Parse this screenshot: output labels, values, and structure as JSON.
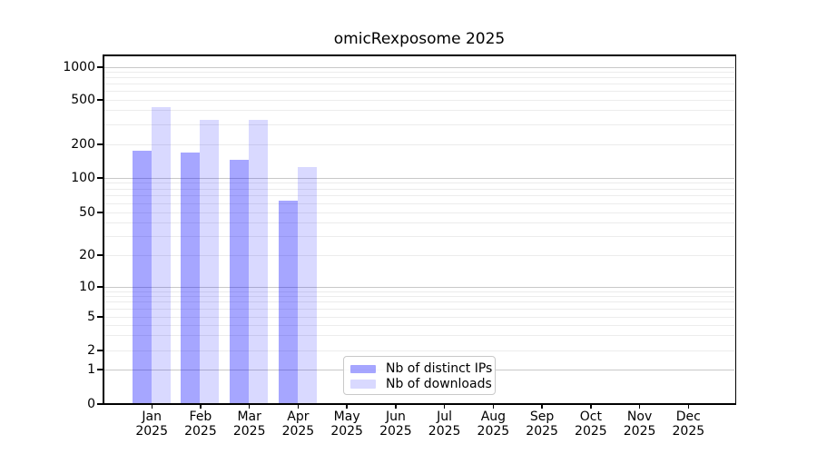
{
  "chart_data": {
    "type": "bar",
    "title": "omicRexposome 2025",
    "categories": [
      "Jan",
      "Feb",
      "Mar",
      "Apr",
      "May",
      "Jun",
      "Jul",
      "Aug",
      "Sep",
      "Oct",
      "Nov",
      "Dec"
    ],
    "category_year_label": "2025",
    "series": [
      {
        "name": "Nb of distinct IPs",
        "color": "rgba(0,0,255,0.35)",
        "values": [
          174,
          170,
          146,
          63,
          0,
          0,
          0,
          0,
          0,
          0,
          0,
          0
        ]
      },
      {
        "name": "Nb of downloads",
        "color": "rgba(0,0,255,0.15)",
        "values": [
          428,
          330,
          333,
          125,
          0,
          0,
          0,
          0,
          0,
          0,
          0,
          0
        ]
      }
    ],
    "yticks": [
      0,
      1,
      2,
      5,
      10,
      20,
      50,
      100,
      200,
      500,
      1000
    ],
    "yscale": "log (with 0 at baseline)",
    "ylim": [
      0,
      1300
    ],
    "xlabel": "",
    "ylabel": "",
    "grid": "horizontal major and minor gridlines",
    "legend_position": "inside plot, lower center"
  },
  "colors": {
    "background": "#ffffff",
    "axis": "#000000",
    "major_gridline": "#c8c8c8",
    "minor_gridline": "#ececec",
    "legend_border": "#c9c9c9",
    "bar_distinct_ips": "rgba(0,0,255,0.35)",
    "bar_downloads": "rgba(0,0,255,0.15)"
  }
}
